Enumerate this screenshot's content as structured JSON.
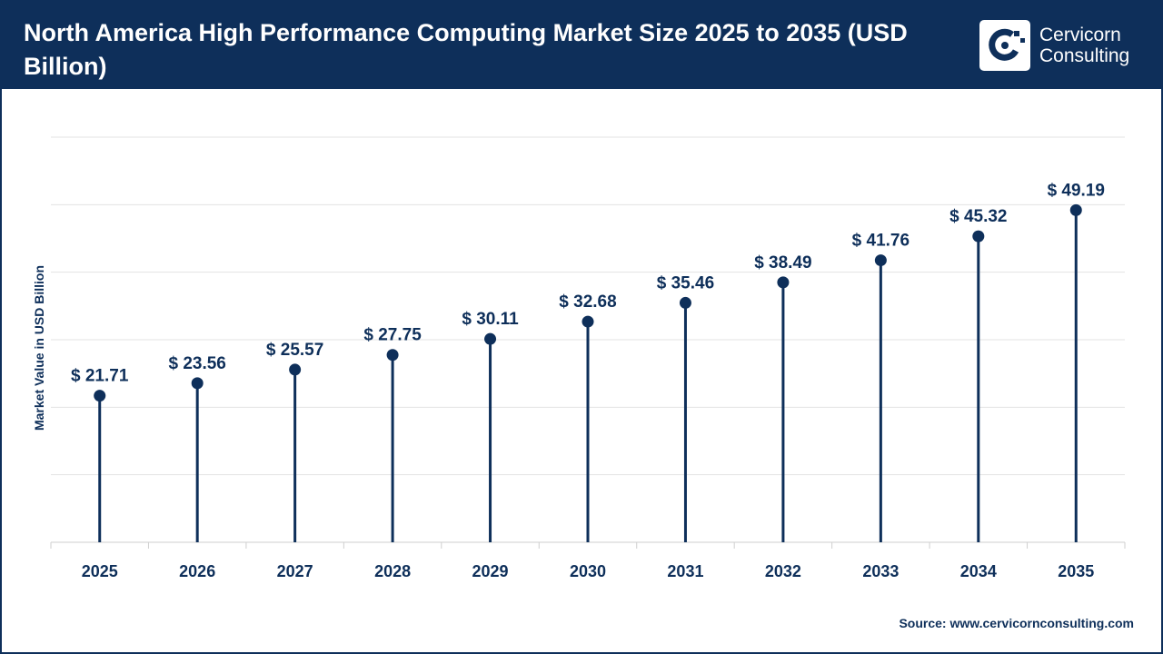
{
  "title": "North America High Performance Computing Market Size 2025 to 2035 (USD Billion)",
  "logo": {
    "line1": "Cervicorn",
    "line2": "Consulting"
  },
  "source": "Source: www.cervicornconsulting.com",
  "colors": {
    "primary": "#0e2f5a",
    "grid": "#e3e3e3",
    "background": "#ffffff"
  },
  "chart_data": {
    "type": "lollipop",
    "categories": [
      "2025",
      "2026",
      "2027",
      "2028",
      "2029",
      "2030",
      "2031",
      "2032",
      "2033",
      "2034",
      "2035"
    ],
    "values": [
      21.71,
      23.56,
      25.57,
      27.75,
      30.11,
      32.68,
      35.46,
      38.49,
      41.76,
      45.32,
      49.19
    ],
    "data_labels": [
      "$ 21.71",
      "$ 23.56",
      "$ 25.57",
      "$ 27.75",
      "$ 30.11",
      "$ 32.68",
      "$ 35.46",
      "$ 38.49",
      "$ 41.76",
      "$ 45.32",
      "$ 49.19"
    ],
    "ylabel": "Market Value in USD Billion",
    "ylim": [
      0,
      60
    ],
    "grid": true,
    "legend": "none"
  }
}
